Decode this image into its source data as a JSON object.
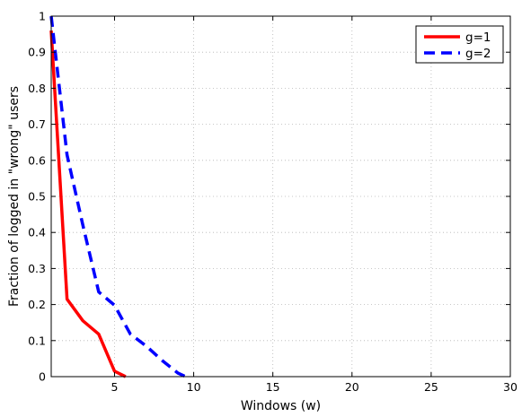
{
  "chart_data": {
    "type": "line",
    "title": "",
    "xlabel": "Windows (w)",
    "ylabel": "Fraction of logged in \"wrong\" users",
    "xlim": [
      1,
      30
    ],
    "ylim": [
      0,
      1
    ],
    "xticks": [
      5,
      10,
      15,
      20,
      25,
      30
    ],
    "yticks": [
      0,
      0.1,
      0.2,
      0.3,
      0.4,
      0.5,
      0.6,
      0.7,
      0.8,
      0.9,
      1
    ],
    "xtick_labels": [
      "5",
      "10",
      "15",
      "20",
      "25",
      "30"
    ],
    "ytick_labels": [
      "0",
      "0.1",
      "0.2",
      "0.3",
      "0.4",
      "0.5",
      "0.6",
      "0.7",
      "0.8",
      "0.9",
      "1"
    ],
    "grid": true,
    "legend_position": "top-right",
    "series": [
      {
        "name": "g=1",
        "color": "#ff0000",
        "style": "solid",
        "x": [
          1,
          2,
          3,
          4,
          5,
          5.7
        ],
        "y": [
          0.96,
          0.215,
          0.155,
          0.118,
          0.015,
          0
        ]
      },
      {
        "name": "g=2",
        "color": "#0000ff",
        "style": "dashed",
        "x": [
          1,
          2,
          3,
          4,
          5,
          6,
          7,
          8,
          9,
          9.5
        ],
        "y": [
          1.0,
          0.615,
          0.42,
          0.235,
          0.198,
          0.118,
          0.085,
          0.045,
          0.01,
          0
        ]
      }
    ]
  }
}
